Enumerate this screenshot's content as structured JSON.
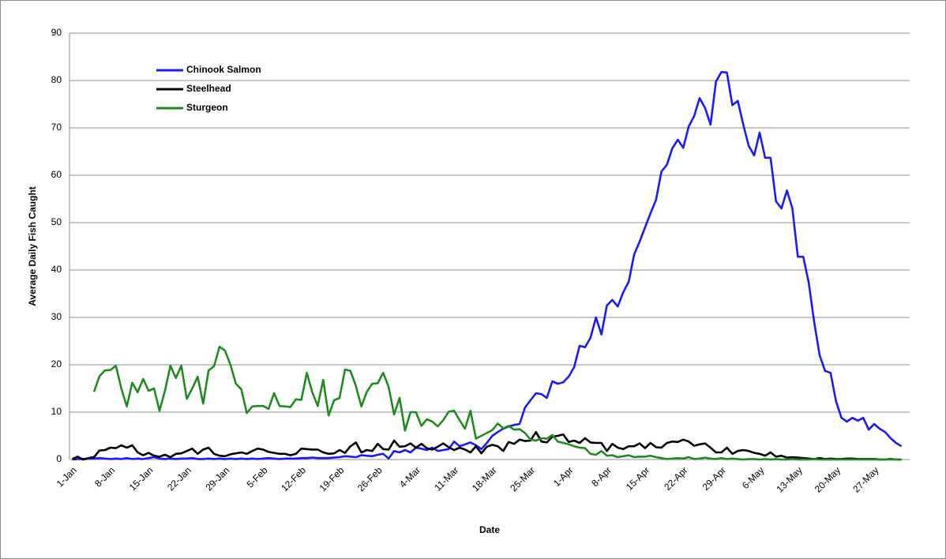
{
  "chart_data": {
    "type": "line",
    "x_label": "Date",
    "y_label": "Average Daily Fish Caught",
    "categories": [
      "1-Jan",
      null,
      null,
      null,
      null,
      null,
      null,
      "8-Jan",
      null,
      null,
      null,
      null,
      null,
      null,
      "15-Jan",
      null,
      null,
      null,
      null,
      null,
      null,
      "22-Jan",
      null,
      null,
      null,
      null,
      null,
      null,
      "29-Jan",
      null,
      null,
      null,
      null,
      null,
      null,
      "5-Feb",
      null,
      null,
      null,
      null,
      null,
      null,
      "12-Feb",
      null,
      null,
      null,
      null,
      null,
      null,
      "19-Feb",
      null,
      null,
      null,
      null,
      null,
      null,
      "26-Feb",
      null,
      null,
      null,
      null,
      null,
      null,
      "4-Mar",
      null,
      null,
      null,
      null,
      null,
      null,
      "11-Mar",
      null,
      null,
      null,
      null,
      null,
      null,
      "18-Mar",
      null,
      null,
      null,
      null,
      null,
      null,
      "25-Mar",
      null,
      null,
      null,
      null,
      null,
      null,
      "1-Apr",
      null,
      null,
      null,
      null,
      null,
      null,
      "8-Apr",
      null,
      null,
      null,
      null,
      null,
      null,
      "15-Apr",
      null,
      null,
      null,
      null,
      null,
      null,
      "22-Apr",
      null,
      null,
      null,
      null,
      null,
      null,
      "29-Apr",
      null,
      null,
      null,
      null,
      null,
      null,
      "6-May",
      null,
      null,
      null,
      null,
      null,
      null,
      "13-May",
      null,
      null,
      null,
      null,
      null,
      null,
      "20-May",
      null,
      null,
      null,
      null,
      null,
      null,
      "27-May",
      null,
      null,
      null,
      null,
      null,
      null
    ],
    "series": [
      {
        "name": "Chinook Salmon",
        "color": "#1a1aff",
        "values": [
          0,
          0.1,
          0.1,
          0.2,
          0.2,
          0.3,
          0.2,
          0.1,
          0.2,
          0.1,
          0.3,
          0.1,
          0.2,
          0.1,
          0.3,
          0.5,
          0.2,
          0.1,
          0.2,
          0.1,
          0.2,
          0.2,
          0.3,
          0.1,
          0.1,
          0.2,
          0.1,
          0.2,
          0.1,
          0.2,
          0.1,
          0.2,
          0.1,
          0.2,
          0.1,
          0.2,
          0.3,
          0.2,
          0.1,
          0.2,
          0.2,
          0.2,
          0.3,
          0.3,
          0.4,
          0.3,
          0.3,
          0.3,
          0.4,
          0.5,
          0.7,
          0.6,
          0.5,
          0.9,
          0.8,
          0.7,
          1,
          1.2,
          0.2,
          1.8,
          1.5,
          2,
          1.5,
          2.5,
          2.3,
          2,
          2.5,
          1.8,
          2,
          2.2,
          3.8,
          2.8,
          3.2,
          3.6,
          3,
          2.2,
          3.5,
          5,
          5.8,
          6.5,
          7,
          7.3,
          7.5,
          11,
          12.5,
          14,
          13.8,
          13,
          16.5,
          16,
          16.3,
          17.5,
          19.5,
          24,
          23.7,
          25.7,
          30,
          26.4,
          32.5,
          33.7,
          32.3,
          35.3,
          37.5,
          43.3,
          46,
          49,
          52,
          54.8,
          60.8,
          62.2,
          65.7,
          67.5,
          65.8,
          70.3,
          72.5,
          76.3,
          74.2,
          70.7,
          79.8,
          81.8,
          81.7,
          74.8,
          75.7,
          70.7,
          66.2,
          64.2,
          69,
          63.7,
          63.7,
          54.5,
          53,
          56.8,
          53,
          42.8,
          42.8,
          37.3,
          29,
          22,
          18.7,
          18.3,
          12.3,
          8.8,
          8,
          8.8,
          8.2,
          8.8,
          6.3,
          7.5,
          6.5,
          5.8,
          4.5,
          3.5,
          2.8,
          null
        ]
      },
      {
        "name": "Steelhead",
        "color": "#000000",
        "values": [
          0.1,
          0.6,
          0,
          0.3,
          0.5,
          1.9,
          2,
          2.5,
          2.4,
          3,
          2.5,
          3,
          1.5,
          0.9,
          1.4,
          0.8,
          0.6,
          1,
          0.5,
          1.2,
          1.3,
          1.8,
          2.3,
          1.2,
          2.1,
          2.5,
          1.2,
          0.8,
          0.7,
          1.1,
          1.3,
          1.5,
          1.2,
          1.8,
          2.3,
          2.1,
          1.6,
          1.4,
          1.2,
          1.2,
          0.9,
          1.2,
          2.3,
          2.2,
          2.1,
          2.1,
          1.5,
          1.2,
          1.3,
          2,
          1.4,
          2.8,
          3.6,
          1.5,
          2,
          1.8,
          3.3,
          2.2,
          2.1,
          4,
          2.7,
          2.8,
          3.4,
          2.5,
          3.3,
          2.4,
          2.1,
          2.7,
          3.4,
          2.6,
          2,
          2.5,
          2.1,
          1.5,
          2.8,
          1.3,
          2.7,
          3.1,
          2.8,
          1.8,
          3.7,
          3.3,
          4.2,
          3.9,
          4,
          5.8,
          3.8,
          3.6,
          4.8,
          5,
          5.3,
          3.7,
          4,
          3.5,
          4.5,
          3.6,
          3.5,
          3.5,
          1.8,
          3.3,
          2.5,
          2.2,
          2.8,
          2.8,
          3.4,
          2.4,
          3.5,
          2.6,
          2.5,
          3.5,
          3.8,
          3.7,
          4.2,
          3.8,
          2.9,
          3.2,
          3.4,
          2.5,
          1.5,
          1.5,
          2.5,
          1.2,
          1.8,
          2,
          1.8,
          1.4,
          1.2,
          0.8,
          1.5,
          0.6,
          0.8,
          0.4,
          0.5,
          0.4,
          0.3,
          0.2,
          0.1,
          0.3,
          0.1,
          0.2,
          0.1,
          0.1,
          0.2,
          0.2,
          0.1,
          0.1,
          0.1,
          0.1,
          0,
          0,
          0.1,
          0,
          0,
          null
        ]
      },
      {
        "name": "Sturgeon",
        "color": "#1e8c1e",
        "values": [
          null,
          null,
          null,
          null,
          14.3,
          17.6,
          18.8,
          18.9,
          19.8,
          15,
          11.2,
          16.2,
          14.2,
          17,
          14.5,
          15,
          10.3,
          14.5,
          19.8,
          17.2,
          19.8,
          12.8,
          15,
          17.5,
          11.8,
          18.8,
          19.7,
          23.8,
          23,
          20,
          16,
          14.8,
          9.8,
          11.2,
          11.3,
          11.3,
          10.7,
          14,
          11.3,
          11.2,
          11.1,
          12.7,
          12.6,
          18.3,
          14.2,
          11.3,
          16.8,
          9.3,
          12.5,
          13,
          19,
          18.7,
          15.5,
          11.2,
          14.3,
          16,
          16.1,
          18.3,
          15.3,
          9.5,
          13,
          6.1,
          10,
          10,
          7.1,
          8.5,
          8,
          7,
          8.3,
          10.1,
          10.3,
          8.3,
          6.5,
          10.3,
          4.4,
          5,
          5.6,
          6.2,
          7.6,
          6.6,
          7.1,
          6.3,
          6.4,
          5.6,
          4.2,
          4,
          4.5,
          4.4,
          5.2,
          3.8,
          3.5,
          3.2,
          2.8,
          2.5,
          2.4,
          1.2,
          1,
          1.8,
          0.8,
          0.9,
          0.5,
          0.7,
          0.9,
          0.5,
          0.6,
          0.6,
          0.8,
          0.5,
          0.3,
          0.1,
          0.2,
          0.3,
          0.2,
          0.5,
          0.1,
          0.2,
          0.4,
          0.2,
          0.1,
          0.3,
          0.1,
          0.2,
          0.1,
          0,
          0.1,
          0.1,
          0,
          0.1,
          0,
          0.1,
          0,
          0,
          0.1,
          0,
          0,
          0,
          0.1,
          0,
          0,
          0,
          0,
          0,
          0,
          0,
          0,
          0,
          0,
          0,
          0,
          0,
          0,
          0,
          0,
          null
        ]
      }
    ],
    "ylim": [
      0,
      90
    ],
    "yticks": [
      0,
      10,
      20,
      30,
      40,
      50,
      60,
      70,
      80,
      90
    ],
    "grid": true,
    "legend": "upper left"
  }
}
